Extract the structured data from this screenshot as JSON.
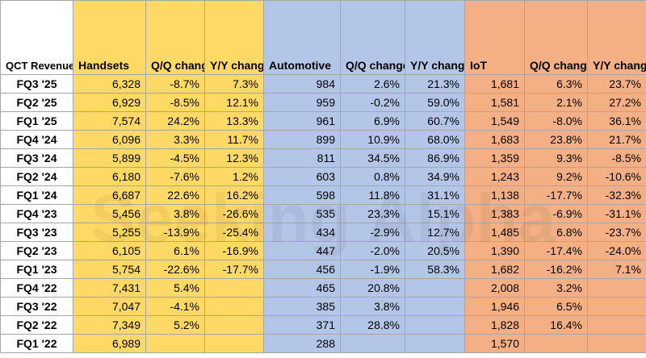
{
  "chart_data": {
    "type": "table",
    "corner_header": "QCT Revenue Streams (in $M)",
    "groups": [
      {
        "name": "Handsets",
        "color": "#ffd966"
      },
      {
        "name": "Automotive",
        "color": "#b4c6e7"
      },
      {
        "name": "IoT",
        "color": "#f4b084"
      }
    ],
    "columns": [
      "Handsets",
      "Q/Q change",
      "Y/Y change",
      "Automotive",
      "Q/Q change",
      "Y/Y change",
      "IoT",
      "Q/Q change",
      "Y/Y change"
    ],
    "rows": [
      {
        "quarter": "FQ3 '25",
        "values": [
          "6,328",
          "-8.7%",
          "7.3%",
          "984",
          "2.6%",
          "21.3%",
          "1,681",
          "6.3%",
          "23.7%"
        ]
      },
      {
        "quarter": "FQ2 '25",
        "values": [
          "6,929",
          "-8.5%",
          "12.1%",
          "959",
          "-0.2%",
          "59.0%",
          "1,581",
          "2.1%",
          "27.2%"
        ]
      },
      {
        "quarter": "FQ1 '25",
        "values": [
          "7,574",
          "24.2%",
          "13.3%",
          "961",
          "6.9%",
          "60.7%",
          "1,549",
          "-8.0%",
          "36.1%"
        ]
      },
      {
        "quarter": "FQ4 '24",
        "values": [
          "6,096",
          "3.3%",
          "11.7%",
          "899",
          "10.9%",
          "68.0%",
          "1,683",
          "23.8%",
          "21.7%"
        ]
      },
      {
        "quarter": "FQ3 '24",
        "values": [
          "5,899",
          "-4.5%",
          "12.3%",
          "811",
          "34.5%",
          "86.9%",
          "1,359",
          "9.3%",
          "-8.5%"
        ]
      },
      {
        "quarter": "FQ2 '24",
        "values": [
          "6,180",
          "-7.6%",
          "1.2%",
          "603",
          "0.8%",
          "34.9%",
          "1,243",
          "9.2%",
          "-10.6%"
        ]
      },
      {
        "quarter": "FQ1 '24",
        "values": [
          "6,687",
          "22.6%",
          "16.2%",
          "598",
          "11.8%",
          "31.1%",
          "1,138",
          "-17.7%",
          "-32.3%"
        ]
      },
      {
        "quarter": "FQ4 '23",
        "values": [
          "5,456",
          "3.8%",
          "-26.6%",
          "535",
          "23.3%",
          "15.1%",
          "1,383",
          "-6.9%",
          "-31.1%"
        ]
      },
      {
        "quarter": "FQ3 '23",
        "values": [
          "5,255",
          "-13.9%",
          "-25.4%",
          "434",
          "-2.9%",
          "12.7%",
          "1,485",
          "6.8%",
          "-23.7%"
        ]
      },
      {
        "quarter": "FQ2 '23",
        "values": [
          "6,105",
          "6.1%",
          "-16.9%",
          "447",
          "-2.0%",
          "20.5%",
          "1,390",
          "-17.4%",
          "-24.0%"
        ]
      },
      {
        "quarter": "FQ1 '23",
        "values": [
          "5,754",
          "-22.6%",
          "-17.7%",
          "456",
          "-1.9%",
          "58.3%",
          "1,682",
          "-16.2%",
          "7.1%"
        ]
      },
      {
        "quarter": "FQ4 '22",
        "values": [
          "7,431",
          "5.4%",
          "",
          "465",
          "20.8%",
          "",
          "2,008",
          "3.2%",
          ""
        ]
      },
      {
        "quarter": "FQ3 '22",
        "values": [
          "7,047",
          "-4.1%",
          "",
          "385",
          "3.8%",
          "",
          "1,946",
          "6.5%",
          ""
        ]
      },
      {
        "quarter": "FQ2 '22",
        "values": [
          "7,349",
          "5.2%",
          "",
          "371",
          "28.8%",
          "",
          "1,828",
          "16.4%",
          ""
        ]
      },
      {
        "quarter": "FQ1 '22",
        "values": [
          "6,989",
          "",
          "",
          "288",
          "",
          "",
          "1,570",
          "",
          ""
        ]
      }
    ],
    "watermark": "Seeking Alpha"
  }
}
